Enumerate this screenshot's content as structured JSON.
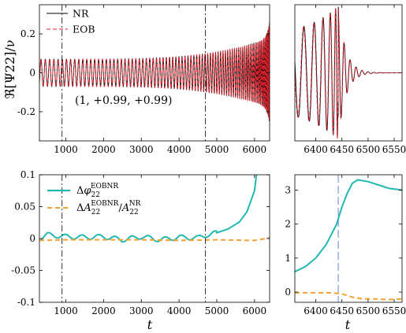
{
  "chart_data": [
    {
      "type": "line",
      "panel": "top-left",
      "ylabel": "ℜ[Ψ22]/ν",
      "xlim": [
        300,
        6400
      ],
      "ylim": [
        -0.35,
        0.35
      ],
      "xticks": [
        1000,
        2000,
        3000,
        4000,
        5000,
        6000
      ],
      "xtick_labels": [
        "1000",
        "2000",
        "3000",
        "4000",
        "5000",
        "6000"
      ],
      "yticks": [
        -0.2,
        0,
        0.2
      ],
      "ytick_labels": [
        "-0.2",
        "0",
        "0.2"
      ],
      "legend_position": "top-left",
      "annotation": "(1, +0.99, +0.99)",
      "vlines": [
        900,
        4700
      ],
      "series": [
        {
          "name": "NR",
          "color": "#000000",
          "style": "solid",
          "description": "oscillatory inspiral, amplitude growing from ~0.07 to ~0.2"
        },
        {
          "name": "EOB",
          "color": "#e0202a",
          "style": "dashed",
          "description": "overlaps NR waveform"
        }
      ]
    },
    {
      "type": "line",
      "panel": "top-right",
      "xlim": [
        6360,
        6565
      ],
      "ylim": [
        -0.35,
        0.35
      ],
      "xticks": [
        6400,
        6450,
        6500,
        6550
      ],
      "xtick_labels": [
        "6400",
        "6450",
        "6500",
        "6550"
      ],
      "peak_time": 6443,
      "series": [
        {
          "name": "NR",
          "color": "#000000",
          "style": "solid"
        },
        {
          "name": "EOB",
          "color": "#e0202a",
          "style": "dashed"
        }
      ]
    },
    {
      "type": "line",
      "panel": "bottom-left",
      "xlabel": "t",
      "xlim": [
        300,
        6400
      ],
      "ylim": [
        -0.1,
        0.1
      ],
      "xticks": [
        1000,
        2000,
        3000,
        4000,
        5000,
        6000
      ],
      "xtick_labels": [
        "1000",
        "2000",
        "3000",
        "4000",
        "5000",
        "6000"
      ],
      "yticks": [
        -0.1,
        -0.05,
        0,
        0.05,
        0.1
      ],
      "ytick_labels": [
        "-0.1",
        "-0.05",
        "0",
        "0.05",
        "0.1"
      ],
      "legend_position": "top-left",
      "vlines": [
        900,
        4700
      ],
      "series": [
        {
          "name": "Δφ22 EOBNR",
          "color": "#20b8b0",
          "style": "solid",
          "x": [
            300,
            500,
            1000,
            1500,
            2000,
            2500,
            3000,
            3500,
            4000,
            4500,
            4700,
            5000,
            5300,
            5600,
            5800,
            6000,
            6050
          ],
          "y": [
            0.0,
            0.006,
            0.003,
            0.002,
            0.003,
            -0.002,
            0.003,
            -0.002,
            0.002,
            0.001,
            0.005,
            0.009,
            0.015,
            0.026,
            0.042,
            0.075,
            0.1
          ]
        },
        {
          "name": "ΔA22 EOBNR / A22 NR",
          "color": "#f5a030",
          "style": "dashed",
          "x": [
            300,
            1000,
            2000,
            3000,
            4000,
            5000,
            6000,
            6400
          ],
          "y": [
            -0.003,
            -0.002,
            -0.002,
            -0.002,
            -0.003,
            -0.002,
            -0.003,
            0.001
          ]
        }
      ]
    },
    {
      "type": "line",
      "panel": "bottom-right",
      "xlabel": "t",
      "xlim": [
        6360,
        6565
      ],
      "ylim": [
        -0.3,
        3.45
      ],
      "xticks": [
        6400,
        6450,
        6500,
        6550
      ],
      "xtick_labels": [
        "6400",
        "6450",
        "6500",
        "6550"
      ],
      "yticks": [
        0,
        1,
        2,
        3
      ],
      "ytick_labels": [
        "0",
        "1",
        "2",
        "3"
      ],
      "vline": 6443,
      "series": [
        {
          "name": "Δφ22 EOBNR",
          "color": "#20b8b0",
          "style": "solid",
          "x": [
            6360,
            6380,
            6400,
            6420,
            6440,
            6450,
            6460,
            6470,
            6480,
            6500,
            6520,
            6540,
            6565
          ],
          "y": [
            0.6,
            0.75,
            1.0,
            1.4,
            2.0,
            2.5,
            2.9,
            3.2,
            3.3,
            3.25,
            3.15,
            3.05,
            3.0
          ]
        },
        {
          "name": "ΔA22 EOBNR / A22 NR",
          "color": "#f5a030",
          "style": "dashed",
          "x": [
            6360,
            6400,
            6430,
            6450,
            6470,
            6490,
            6510,
            6540,
            6565
          ],
          "y": [
            -0.02,
            -0.02,
            -0.02,
            -0.05,
            -0.15,
            -0.2,
            -0.2,
            -0.22,
            -0.2
          ]
        }
      ]
    }
  ]
}
